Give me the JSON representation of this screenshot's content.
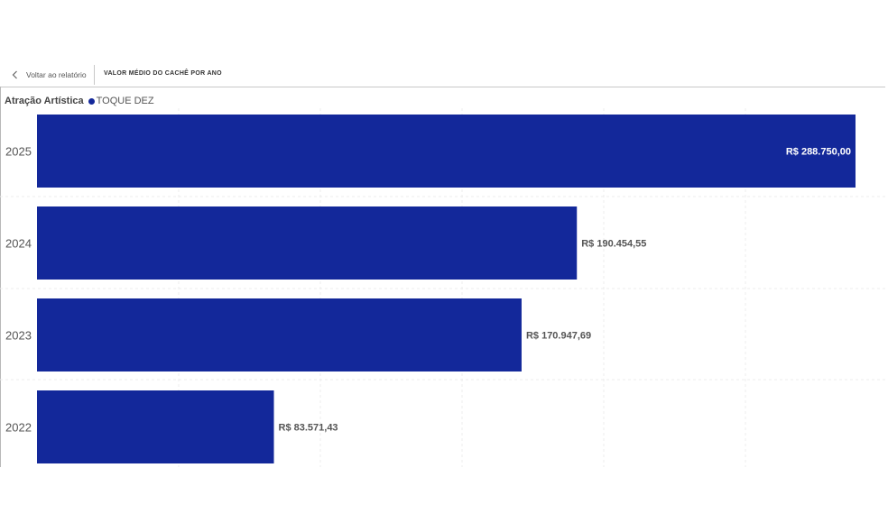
{
  "header": {
    "back_label": "Voltar ao relatório",
    "page_title": "VALOR MÉDIO DO CACHÊ POR ANO"
  },
  "legend": {
    "title": "Atração Artística",
    "series_label": "TOQUE DEZ"
  },
  "colors": {
    "bar": "#13289a",
    "label_inside": "#ffffff",
    "label_outside": "#555555"
  },
  "chart_data": {
    "type": "bar",
    "orientation": "horizontal",
    "categories": [
      "2025",
      "2024",
      "2023",
      "2022"
    ],
    "series": [
      {
        "name": "TOQUE DEZ",
        "values": [
          288750.0,
          190454.55,
          170947.69,
          83571.43
        ]
      }
    ],
    "data_labels": [
      "R$ 288.750,00",
      "R$ 190.454,55",
      "R$ 170.947,69",
      "R$ 83.571,43"
    ],
    "xlim": [
      0,
      288750
    ],
    "legend_position": "top-left",
    "grid": true
  }
}
